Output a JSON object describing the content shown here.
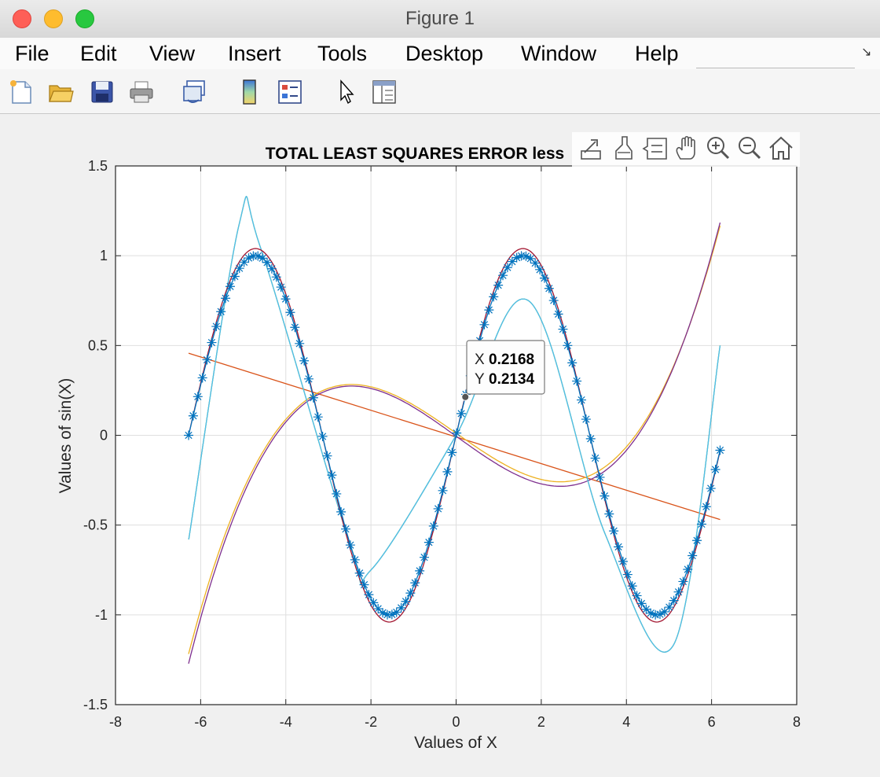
{
  "window": {
    "title": "Figure 1"
  },
  "menu": {
    "items": [
      "File",
      "Edit",
      "View",
      "Insert",
      "Tools",
      "Desktop",
      "Window",
      "Help"
    ]
  },
  "toolbar": {
    "icons": [
      "new-figure-icon",
      "open-file-icon",
      "save-icon",
      "print-icon",
      "link-plot-icon",
      "colorbar-icon",
      "legend-icon",
      "select-arrow-icon",
      "property-inspector-icon"
    ]
  },
  "axes_toolbar": {
    "icons": [
      "export-icon",
      "brush-icon",
      "data-tips-icon",
      "pan-hand-icon",
      "zoom-in-icon",
      "zoom-out-icon",
      "home-icon"
    ]
  },
  "datatip": {
    "x_label": "X",
    "x_value": "0.2168",
    "y_label": "Y",
    "y_value": "0.2134"
  },
  "chart_data": {
    "type": "line",
    "title": "TOTAL LEAST SQUARES ERROR less",
    "xlabel": "Values of X",
    "ylabel": "Values of sin(X)",
    "xlim": [
      -8,
      8
    ],
    "ylim": [
      -1.5,
      1.5
    ],
    "xticks": [
      -8,
      -6,
      -4,
      -2,
      0,
      2,
      4,
      6,
      8
    ],
    "yticks": [
      -1.5,
      -1,
      -0.5,
      0,
      0.5,
      1,
      1.5
    ],
    "xtick_labels": [
      "-8",
      "-6",
      "-4",
      "-2",
      "0",
      "2",
      "4",
      "6",
      "8"
    ],
    "ytick_labels": [
      "-1.5",
      "-1",
      "-0.5",
      "0",
      "0.5",
      "1",
      "1.5"
    ],
    "grid": true,
    "x_range": [
      -6.2832,
      6.2
    ],
    "scatter_marker": "asterisk",
    "datatip_point": {
      "x": 0.2168,
      "y": 0.2134
    },
    "series": [
      {
        "kind": "data-points",
        "function": "sin(x)",
        "color": "#0072bd",
        "marker": "*",
        "points": 116
      },
      {
        "kind": "fit",
        "degree": 1,
        "coefficients": [
          -0.0742,
          -0.0092
        ],
        "color": "#d95319"
      },
      {
        "kind": "fit",
        "degree": 3,
        "coefficients": [
          0.0001,
          -0.0038,
          0.0003,
          0.0474
        ],
        "color": "#edb120"
      },
      {
        "kind": "fit",
        "degree": 3,
        "coefficients": [
          0.0001,
          -0.0038,
          0.0003,
          0.0474
        ],
        "color": "#7e2f8e"
      },
      {
        "kind": "fit",
        "degree": 5,
        "label_note": "",
        "color": "#77ac30",
        "points": [
          [
            -6.28,
            -0.58
          ],
          [
            -5.1,
            1.17
          ],
          [
            -4.6,
            1.05
          ],
          [
            -2.5,
            -0.6
          ],
          [
            -2.0,
            -0.75
          ],
          [
            0,
            0
          ],
          [
            1.7,
            0.75
          ],
          [
            3.5,
            -0.55
          ],
          [
            5.1,
            -1.17
          ],
          [
            6.2,
            0.5
          ]
        ]
      },
      {
        "kind": "fit",
        "degree": 5,
        "color": "#4dbeee",
        "points": [
          [
            -6.28,
            -0.58
          ],
          [
            -5.1,
            1.17
          ],
          [
            -4.6,
            1.05
          ],
          [
            -2.5,
            -0.6
          ],
          [
            -2.0,
            -0.75
          ],
          [
            0,
            0
          ],
          [
            1.7,
            0.75
          ],
          [
            3.5,
            -0.55
          ],
          [
            5.1,
            -1.17
          ],
          [
            6.2,
            0.5
          ]
        ]
      },
      {
        "kind": "fit",
        "degree": 7,
        "color": "#a2142f",
        "function_approx": "sin(x)"
      },
      {
        "kind": "fit",
        "degree": 9,
        "color": "#0072bd",
        "function_approx": "sin(x)"
      }
    ]
  }
}
